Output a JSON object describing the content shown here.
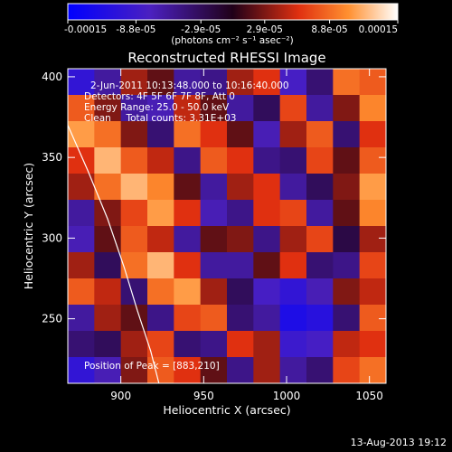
{
  "chart_data": {
    "type": "heatmap",
    "title": "Reconstructed RHESSI Image",
    "xlabel": "Heliocentric X (arcsec)",
    "ylabel": "Heliocentric Y (arcsec)",
    "xlim": [
      868,
      1060
    ],
    "ylim": [
      210,
      405
    ],
    "x_ticks": [
      900,
      950,
      1000,
      1050
    ],
    "y_ticks": [
      250,
      300,
      350,
      400
    ],
    "colorbar": {
      "label": "(photons cm⁻² s⁻¹ asec⁻²)",
      "range": [
        -0.00015,
        0.00015
      ],
      "tick_labels": [
        "-0.00015",
        "-8.8e-05",
        "-2.9e-05",
        "2.9e-05",
        "8.8e-05",
        "0.00015"
      ],
      "tick_values": [
        -0.00015,
        -8.8e-05,
        -2.9e-05,
        2.9e-05,
        8.8e-05,
        0.00015
      ]
    },
    "annotations": [
      "2-Jun-2011 10:13:48.000 to 10:16:40.000",
      "Detectors: 4F 5F 6F 7F 8F, Att 0",
      "Energy Range: 25.0 - 50.0 keV",
      "Clean     Total counts: 3.31E+03"
    ],
    "peak_label": "Position of Peak = [883,210]",
    "peak": [
      883,
      210
    ],
    "limb_curve": [
      [
        868,
        370
      ],
      [
        880,
        342
      ],
      [
        892,
        312
      ],
      [
        902,
        282
      ],
      [
        910,
        255
      ],
      [
        918,
        230
      ],
      [
        923,
        210
      ]
    ],
    "grid": {
      "x0": 868,
      "x1": 1060,
      "y0": 210,
      "y1": 405,
      "cols": 12,
      "rows": 12,
      "values": [
        [
          -0.0001,
          -6e-05,
          4e-05,
          2e-05,
          -6e-05,
          -5e-05,
          4e-05,
          6e-05,
          -8e-05,
          -4e-05,
          9e-05,
          8e-05
        ],
        [
          8e-05,
          3e-05,
          -6e-05,
          -7e-05,
          5e-05,
          2e-05,
          -6e-05,
          -3e-05,
          7e-05,
          -6e-05,
          3e-05,
          0.0001
        ],
        [
          0.00011,
          9e-05,
          3e-05,
          -4e-05,
          9e-05,
          6e-05,
          2e-05,
          -7e-05,
          4e-05,
          8e-05,
          -4e-05,
          6e-05
        ],
        [
          6e-05,
          0.00012,
          8e-05,
          5e-05,
          -5e-05,
          8e-05,
          6e-05,
          -5e-05,
          -4e-05,
          7e-05,
          2e-05,
          8e-05
        ],
        [
          4e-05,
          9e-05,
          0.00012,
          0.0001,
          2e-05,
          -6e-05,
          4e-05,
          6e-05,
          -6e-05,
          -3e-05,
          3e-05,
          0.00011
        ],
        [
          -6e-05,
          3e-05,
          7e-05,
          0.00011,
          6e-05,
          -7e-05,
          -5e-05,
          6e-05,
          7e-05,
          -6e-05,
          2e-05,
          0.0001
        ],
        [
          -7e-05,
          2e-05,
          8e-05,
          5e-05,
          -6e-05,
          2e-05,
          3e-05,
          -5e-05,
          4e-05,
          7e-05,
          -2e-05,
          4e-05
        ],
        [
          4e-05,
          -3e-05,
          9e-05,
          0.00012,
          6e-05,
          -6e-05,
          -6e-05,
          2e-05,
          6e-05,
          -4e-05,
          -5e-05,
          7e-05
        ],
        [
          8e-05,
          5e-05,
          -4e-05,
          9e-05,
          0.00011,
          4e-05,
          -3e-05,
          -8e-05,
          -0.0001,
          -7e-05,
          3e-05,
          5e-05
        ],
        [
          -6e-05,
          4e-05,
          2e-05,
          -5e-05,
          7e-05,
          8e-05,
          -4e-05,
          -6e-05,
          -0.00012,
          -0.00011,
          -4e-05,
          8e-05
        ],
        [
          -4e-05,
          -3e-05,
          4e-05,
          7e-05,
          -4e-05,
          -5e-05,
          6e-05,
          4e-05,
          -9e-05,
          -8e-05,
          5e-05,
          6e-05
        ],
        [
          -0.0001,
          -7e-05,
          3e-05,
          8e-05,
          6e-05,
          2e-05,
          -5e-05,
          4e-05,
          -6e-05,
          -4e-05,
          7e-05,
          9e-05
        ]
      ]
    }
  },
  "footer": {
    "timestamp": "13-Aug-2013 19:12"
  }
}
